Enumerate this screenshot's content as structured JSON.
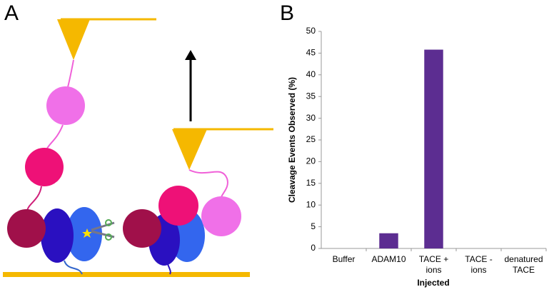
{
  "panel_labels": [
    "A",
    "B"
  ],
  "chart_data": {
    "type": "bar",
    "categories": [
      "Buffer",
      "ADAM10",
      "TACE +\nions",
      "TACE -\nions",
      "denatured\nTACE"
    ],
    "values": [
      0,
      3.5,
      45.8,
      0,
      0
    ],
    "color": "#5c2d91",
    "ylabel": "Cleavage Events Observed (%)",
    "xlabel": "Injected",
    "ylim": [
      0,
      50
    ],
    "yticks": [
      0,
      5,
      10,
      15,
      20,
      25,
      30,
      35,
      40,
      45,
      50
    ],
    "grid": false
  }
}
